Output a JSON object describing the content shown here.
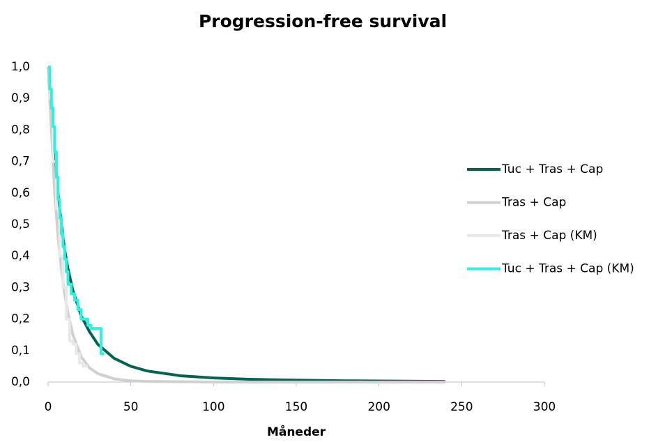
{
  "chart_data": {
    "type": "line",
    "title": "Progression-free survival",
    "x_label": "Måneder",
    "xlim": [
      0,
      300
    ],
    "xticks": [
      0,
      50,
      100,
      150,
      200,
      250,
      300
    ],
    "ylim": [
      0,
      1
    ],
    "yticks": [
      {
        "value": 0,
        "label": "0,0"
      },
      {
        "value": 0.1,
        "label": "0,1"
      },
      {
        "value": 0.2,
        "label": "0,2"
      },
      {
        "value": 0.3,
        "label": "0,3"
      },
      {
        "value": 0.4,
        "label": "0,4"
      },
      {
        "value": 0.5,
        "label": "0,5"
      },
      {
        "value": 0.6,
        "label": "0,6"
      },
      {
        "value": 0.7,
        "label": "0,7"
      },
      {
        "value": 0.8,
        "label": "0,8"
      },
      {
        "value": 0.9,
        "label": "0,9"
      },
      {
        "value": 1,
        "label": "1,0"
      }
    ],
    "grid": false,
    "legend": "right",
    "series": [
      {
        "name": "Tuc + Tras + Cap",
        "color": "#006450",
        "x": [
          0,
          2,
          4,
          6,
          8,
          10,
          12,
          15,
          20,
          25,
          30,
          40,
          50,
          60,
          80,
          100,
          120,
          150,
          180,
          210,
          240
        ],
        "values": [
          1,
          0.88,
          0.72,
          0.6,
          0.5,
          0.42,
          0.36,
          0.29,
          0.21,
          0.16,
          0.12,
          0.075,
          0.05,
          0.035,
          0.02,
          0.013,
          0.009,
          0.006,
          0.004,
          0.003,
          0.002
        ]
      },
      {
        "name": "Tras + Cap",
        "color": "#d0d0d0",
        "x": [
          0,
          2,
          4,
          6,
          8,
          10,
          12,
          15,
          20,
          25,
          30,
          40,
          50,
          60,
          80,
          100,
          150,
          200,
          240
        ],
        "values": [
          1,
          0.8,
          0.6,
          0.46,
          0.36,
          0.28,
          0.22,
          0.15,
          0.08,
          0.045,
          0.027,
          0.01,
          0.004,
          0.002,
          0.001,
          0,
          0,
          0,
          0
        ]
      },
      {
        "name": "Tras + Cap (KM)",
        "color": "#e8e8e8",
        "x": [
          0,
          1,
          1,
          3,
          3,
          5,
          5,
          7,
          7,
          9,
          9,
          11,
          11,
          13,
          13,
          15,
          15,
          17,
          17,
          19,
          19,
          21,
          21,
          24
        ],
        "values": [
          1,
          1,
          0.9,
          0.9,
          0.7,
          0.7,
          0.55,
          0.55,
          0.4,
          0.4,
          0.3,
          0.3,
          0.2,
          0.2,
          0.13,
          0.13,
          0.12,
          0.12,
          0.09,
          0.09,
          0.06,
          0.06,
          0.05,
          0.05
        ]
      },
      {
        "name": "Tuc + Tras + Cap (KM)",
        "color": "#2ef2df",
        "x": [
          0,
          1,
          1,
          2,
          2,
          3,
          3,
          4,
          4,
          5,
          5,
          6,
          6,
          7,
          7,
          8,
          8,
          9,
          9,
          10,
          10,
          11,
          11,
          12,
          12,
          14,
          14,
          16,
          16,
          18,
          18,
          20,
          20,
          24,
          24,
          26,
          26,
          32,
          32,
          34
        ],
        "values": [
          1,
          1,
          0.93,
          0.93,
          0.87,
          0.87,
          0.81,
          0.81,
          0.73,
          0.73,
          0.65,
          0.65,
          0.58,
          0.58,
          0.52,
          0.52,
          0.47,
          0.47,
          0.43,
          0.43,
          0.39,
          0.39,
          0.35,
          0.35,
          0.31,
          0.31,
          0.28,
          0.28,
          0.26,
          0.26,
          0.23,
          0.23,
          0.2,
          0.2,
          0.18,
          0.18,
          0.17,
          0.17,
          0.09,
          0.09
        ]
      }
    ]
  }
}
